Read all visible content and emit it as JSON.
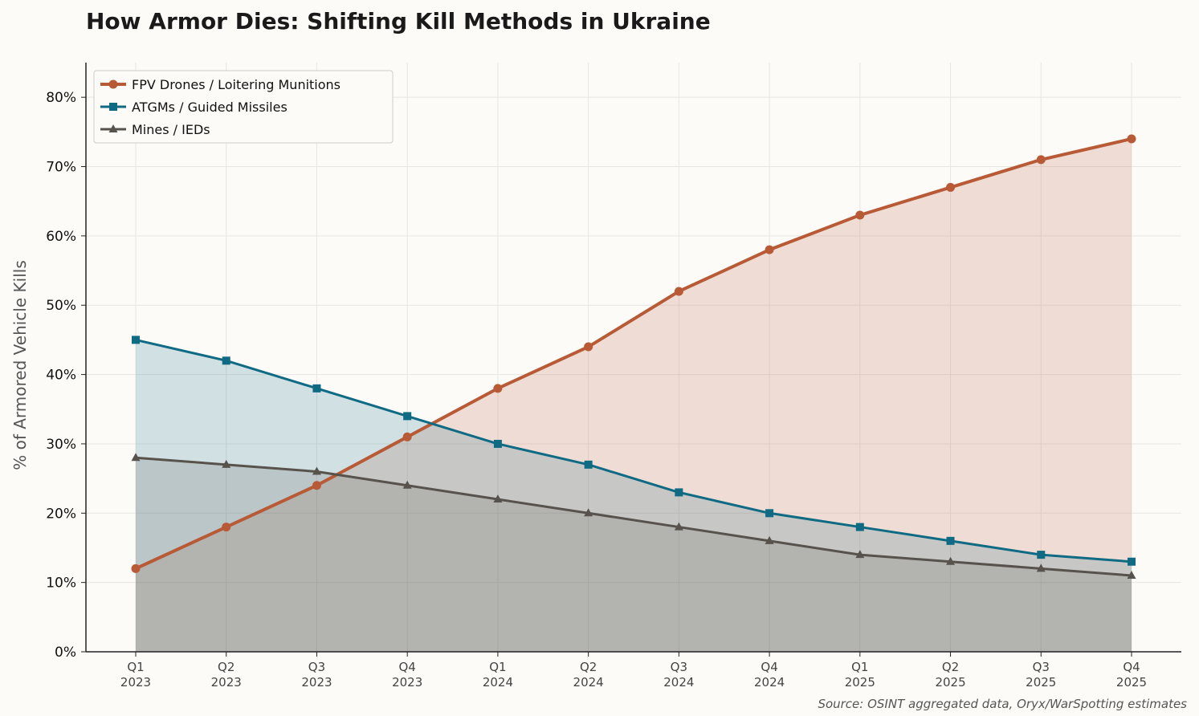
{
  "chart_data": {
    "type": "line",
    "title": "How Armor Dies: Shifting Kill Methods in Ukraine",
    "xlabel": "",
    "ylabel": "% of Armored Vehicle Kills",
    "categories": [
      "Q1\n2023",
      "Q2\n2023",
      "Q3\n2023",
      "Q4\n2023",
      "Q1\n2024",
      "Q2\n2024",
      "Q3\n2024",
      "Q4\n2024",
      "Q1\n2025",
      "Q2\n2025",
      "Q3\n2025",
      "Q4\n2025"
    ],
    "ylim": [
      0,
      85
    ],
    "yticks": [
      0,
      10,
      20,
      30,
      40,
      50,
      60,
      70,
      80
    ],
    "ytick_format": "%",
    "grid": true,
    "area_fill": true,
    "legend": "top-left",
    "series": [
      {
        "name": "FPV Drones / Loitering Munitions",
        "color": "#b85a36",
        "marker": "circle",
        "values": [
          12,
          18,
          24,
          31,
          38,
          44,
          52,
          58,
          63,
          67,
          71,
          74
        ]
      },
      {
        "name": "ATGMs / Guided Missiles",
        "color": "#0f6a84",
        "marker": "square",
        "values": [
          45,
          42,
          38,
          34,
          30,
          27,
          23,
          20,
          18,
          16,
          14,
          13
        ]
      },
      {
        "name": "Mines / IEDs",
        "color": "#57524c",
        "marker": "triangle",
        "values": [
          28,
          27,
          26,
          24,
          22,
          20,
          18,
          16,
          14,
          13,
          12,
          11
        ]
      }
    ],
    "source": "Source: OSINT aggregated data, Oryx/WarSpotting estimates"
  }
}
